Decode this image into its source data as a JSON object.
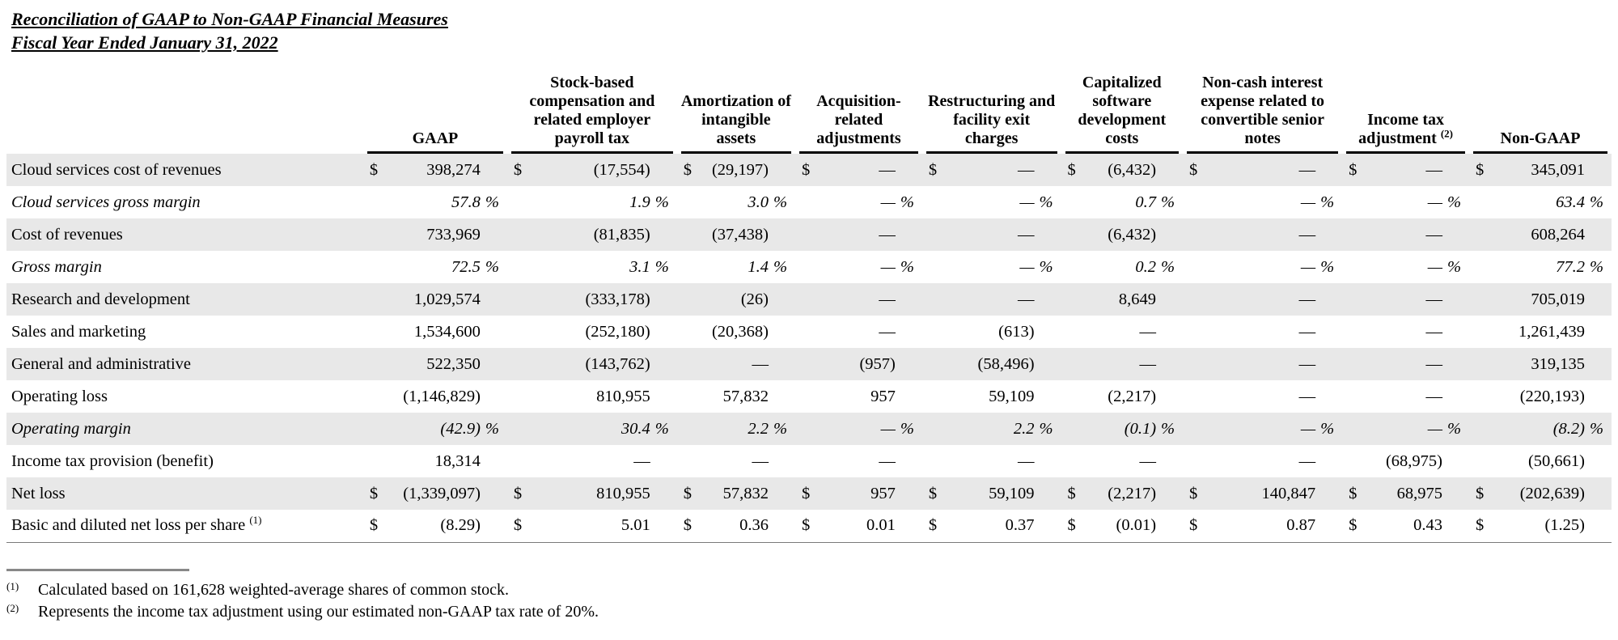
{
  "header": {
    "title": "Reconciliation of GAAP to Non-GAAP Financial Measures",
    "subtitle": "Fiscal Year Ended January 31, 2022"
  },
  "table": {
    "columns": [
      {
        "label": "GAAP",
        "sup": ""
      },
      {
        "label": "Stock-based compensation and related employer payroll tax",
        "sup": ""
      },
      {
        "label": "Amortization of intangible assets",
        "sup": ""
      },
      {
        "label": "Acquisition-related adjustments",
        "sup": ""
      },
      {
        "label": "Restructuring and facility exit charges",
        "sup": ""
      },
      {
        "label": "Capitalized software development costs",
        "sup": ""
      },
      {
        "label": "Non-cash interest expense related to convertible senior notes",
        "sup": ""
      },
      {
        "label": "Income tax adjustment",
        "sup": "(2)"
      },
      {
        "label": "Non-GAAP",
        "sup": ""
      }
    ],
    "rows": [
      {
        "label": "Cloud services cost of revenues",
        "sup": "",
        "italic": false,
        "shaded": true,
        "cells": [
          [
            "$",
            "398,274",
            ""
          ],
          [
            "$",
            "(17,554)",
            ""
          ],
          [
            "$",
            "(29,197)",
            ""
          ],
          [
            "$",
            "—",
            ""
          ],
          [
            "$",
            "—",
            ""
          ],
          [
            "$",
            "(6,432)",
            ""
          ],
          [
            "$",
            "—",
            ""
          ],
          [
            "$",
            "—",
            ""
          ],
          [
            "$",
            "345,091",
            ""
          ]
        ]
      },
      {
        "label": "Cloud services gross margin",
        "sup": "",
        "italic": true,
        "shaded": false,
        "cells": [
          [
            "",
            "57.8",
            "%"
          ],
          [
            "",
            "1.9",
            "%"
          ],
          [
            "",
            "3.0",
            "%"
          ],
          [
            "",
            "—",
            "%"
          ],
          [
            "",
            "—",
            "%"
          ],
          [
            "",
            "0.7",
            "%"
          ],
          [
            "",
            "—",
            "%"
          ],
          [
            "",
            "—",
            "%"
          ],
          [
            "",
            "63.4",
            "%"
          ]
        ]
      },
      {
        "label": "Cost of revenues",
        "sup": "",
        "italic": false,
        "shaded": true,
        "cells": [
          [
            "",
            "733,969",
            ""
          ],
          [
            "",
            "(81,835)",
            ""
          ],
          [
            "",
            "(37,438)",
            ""
          ],
          [
            "",
            "—",
            ""
          ],
          [
            "",
            "—",
            ""
          ],
          [
            "",
            "(6,432)",
            ""
          ],
          [
            "",
            "—",
            ""
          ],
          [
            "",
            "—",
            ""
          ],
          [
            "",
            "608,264",
            ""
          ]
        ]
      },
      {
        "label": "Gross margin",
        "sup": "",
        "italic": true,
        "shaded": false,
        "cells": [
          [
            "",
            "72.5",
            "%"
          ],
          [
            "",
            "3.1",
            "%"
          ],
          [
            "",
            "1.4",
            "%"
          ],
          [
            "",
            "—",
            "%"
          ],
          [
            "",
            "—",
            "%"
          ],
          [
            "",
            "0.2",
            "%"
          ],
          [
            "",
            "—",
            "%"
          ],
          [
            "",
            "—",
            "%"
          ],
          [
            "",
            "77.2",
            "%"
          ]
        ]
      },
      {
        "label": "Research and development",
        "sup": "",
        "italic": false,
        "shaded": true,
        "cells": [
          [
            "",
            "1,029,574",
            ""
          ],
          [
            "",
            "(333,178)",
            ""
          ],
          [
            "",
            "(26)",
            ""
          ],
          [
            "",
            "—",
            ""
          ],
          [
            "",
            "—",
            ""
          ],
          [
            "",
            "8,649",
            ""
          ],
          [
            "",
            "—",
            ""
          ],
          [
            "",
            "—",
            ""
          ],
          [
            "",
            "705,019",
            ""
          ]
        ]
      },
      {
        "label": "Sales and marketing",
        "sup": "",
        "italic": false,
        "shaded": false,
        "cells": [
          [
            "",
            "1,534,600",
            ""
          ],
          [
            "",
            "(252,180)",
            ""
          ],
          [
            "",
            "(20,368)",
            ""
          ],
          [
            "",
            "—",
            ""
          ],
          [
            "",
            "(613)",
            ""
          ],
          [
            "",
            "—",
            ""
          ],
          [
            "",
            "—",
            ""
          ],
          [
            "",
            "—",
            ""
          ],
          [
            "",
            "1,261,439",
            ""
          ]
        ]
      },
      {
        "label": "General and administrative",
        "sup": "",
        "italic": false,
        "shaded": true,
        "cells": [
          [
            "",
            "522,350",
            ""
          ],
          [
            "",
            "(143,762)",
            ""
          ],
          [
            "",
            "—",
            ""
          ],
          [
            "",
            "(957)",
            ""
          ],
          [
            "",
            "(58,496)",
            ""
          ],
          [
            "",
            "—",
            ""
          ],
          [
            "",
            "—",
            ""
          ],
          [
            "",
            "—",
            ""
          ],
          [
            "",
            "319,135",
            ""
          ]
        ]
      },
      {
        "label": "Operating loss",
        "sup": "",
        "italic": false,
        "shaded": false,
        "cells": [
          [
            "",
            "(1,146,829)",
            ""
          ],
          [
            "",
            "810,955",
            ""
          ],
          [
            "",
            "57,832",
            ""
          ],
          [
            "",
            "957",
            ""
          ],
          [
            "",
            "59,109",
            ""
          ],
          [
            "",
            "(2,217)",
            ""
          ],
          [
            "",
            "—",
            ""
          ],
          [
            "",
            "—",
            ""
          ],
          [
            "",
            "(220,193)",
            ""
          ]
        ]
      },
      {
        "label": "Operating margin",
        "sup": "",
        "italic": true,
        "shaded": true,
        "cells": [
          [
            "",
            "(42.9)",
            "%"
          ],
          [
            "",
            "30.4",
            "%"
          ],
          [
            "",
            "2.2",
            "%"
          ],
          [
            "",
            "—",
            "%"
          ],
          [
            "",
            "2.2",
            "%"
          ],
          [
            "",
            "(0.1)",
            "%"
          ],
          [
            "",
            "—",
            "%"
          ],
          [
            "",
            "—",
            "%"
          ],
          [
            "",
            "(8.2)",
            "%"
          ]
        ]
      },
      {
        "label": "Income tax provision (benefit)",
        "sup": "",
        "italic": false,
        "shaded": false,
        "cells": [
          [
            "",
            "18,314",
            ""
          ],
          [
            "",
            "—",
            ""
          ],
          [
            "",
            "—",
            ""
          ],
          [
            "",
            "—",
            ""
          ],
          [
            "",
            "—",
            ""
          ],
          [
            "",
            "—",
            ""
          ],
          [
            "",
            "—",
            ""
          ],
          [
            "",
            "(68,975)",
            ""
          ],
          [
            "",
            "(50,661)",
            ""
          ]
        ]
      },
      {
        "label": "Net loss",
        "sup": "",
        "italic": false,
        "shaded": true,
        "cells": [
          [
            "$",
            "(1,339,097)",
            ""
          ],
          [
            "$",
            "810,955",
            ""
          ],
          [
            "$",
            "57,832",
            ""
          ],
          [
            "$",
            "957",
            ""
          ],
          [
            "$",
            "59,109",
            ""
          ],
          [
            "$",
            "(2,217)",
            ""
          ],
          [
            "$",
            "140,847",
            ""
          ],
          [
            "$",
            "68,975",
            ""
          ],
          [
            "$",
            "(202,639)",
            ""
          ]
        ]
      },
      {
        "label": "Basic and diluted net loss per share",
        "sup": "(1)",
        "italic": false,
        "shaded": false,
        "cells": [
          [
            "$",
            "(8.29)",
            ""
          ],
          [
            "$",
            "5.01",
            ""
          ],
          [
            "$",
            "0.36",
            ""
          ],
          [
            "$",
            "0.01",
            ""
          ],
          [
            "$",
            "0.37",
            ""
          ],
          [
            "$",
            "(0.01)",
            ""
          ],
          [
            "$",
            "0.87",
            ""
          ],
          [
            "$",
            "0.43",
            ""
          ],
          [
            "$",
            "(1.25)",
            ""
          ]
        ]
      }
    ]
  },
  "footnotes": [
    {
      "marker": "(1)",
      "text": "Calculated based on 161,628 weighted-average shares of common stock."
    },
    {
      "marker": "(2)",
      "text": "Represents the income tax adjustment using our estimated non-GAAP tax rate of 20%."
    }
  ]
}
